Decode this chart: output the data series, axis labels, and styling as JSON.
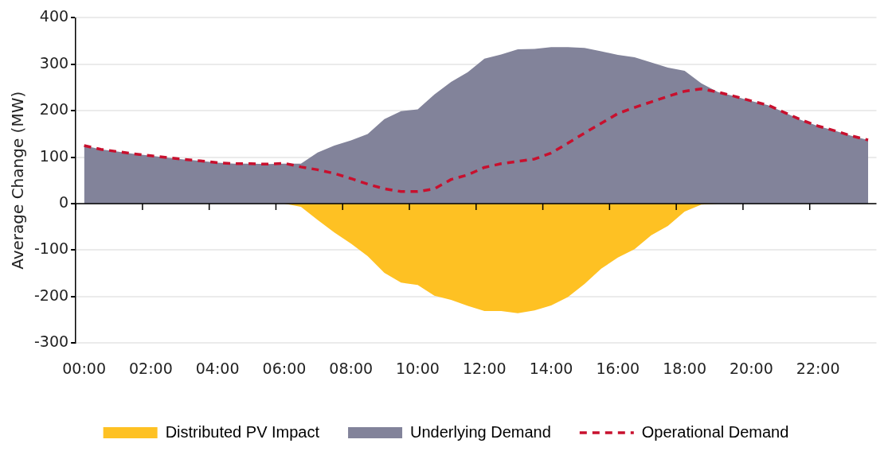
{
  "chart_data": {
    "type": "area",
    "ylabel": "Average Change (MW)",
    "categories": [
      "00:00",
      null,
      null,
      null,
      "02:00",
      null,
      null,
      null,
      "04:00",
      null,
      null,
      null,
      "06:00",
      null,
      null,
      null,
      "08:00",
      null,
      null,
      null,
      "10:00",
      null,
      null,
      null,
      "12:00",
      null,
      null,
      null,
      "14:00",
      null,
      null,
      null,
      "16:00",
      null,
      null,
      null,
      "18:00",
      null,
      null,
      null,
      "20:00",
      null,
      null,
      null,
      "22:00",
      null,
      null,
      null
    ],
    "series": [
      {
        "name": "Distributed PV Impact",
        "type": "area",
        "color": "#fec123",
        "values": [
          0,
          0,
          0,
          0,
          0,
          0,
          0,
          0,
          0,
          0,
          0,
          0,
          0,
          -7,
          -35,
          -62,
          -86,
          -113,
          -149,
          -170,
          -175,
          -198,
          -207,
          -220,
          -231,
          -231,
          -236,
          -230,
          -219,
          -201,
          -173,
          -140,
          -116,
          -98,
          -68,
          -48,
          -17,
          -2,
          0,
          0,
          0,
          0,
          0,
          0,
          0,
          0,
          0,
          0
        ]
      },
      {
        "name": "Underlying Demand",
        "type": "area",
        "color": "#82839a",
        "values": [
          125,
          117,
          112,
          107,
          103,
          99,
          95,
          92,
          88,
          86,
          86,
          85,
          86,
          86,
          110,
          125,
          136,
          150,
          182,
          199,
          203,
          235,
          262,
          283,
          312,
          321,
          332,
          333,
          337,
          337,
          335,
          328,
          320,
          315,
          304,
          293,
          286,
          259,
          240,
          231,
          221,
          212,
          196,
          180,
          167,
          157,
          146,
          137
        ]
      },
      {
        "name": "Operational Demand",
        "type": "line",
        "color": "#c8102e",
        "line_style": "dashed",
        "values": [
          125,
          117,
          112,
          107,
          103,
          99,
          95,
          92,
          88,
          86,
          86,
          85,
          87,
          79,
          73,
          65,
          54,
          42,
          32,
          26,
          26,
          32,
          52,
          62,
          78,
          86,
          91,
          96,
          109,
          130,
          152,
          173,
          194,
          207,
          219,
          231,
          242,
          247,
          240,
          231,
          221,
          212,
          196,
          180,
          167,
          157,
          146,
          137
        ]
      }
    ],
    "ylim": [
      -300,
      400
    ],
    "yticks": [
      -300,
      -200,
      -100,
      0,
      100,
      200,
      300,
      400
    ],
    "grid": "y",
    "legend": "bottom",
    "marker": "none"
  }
}
